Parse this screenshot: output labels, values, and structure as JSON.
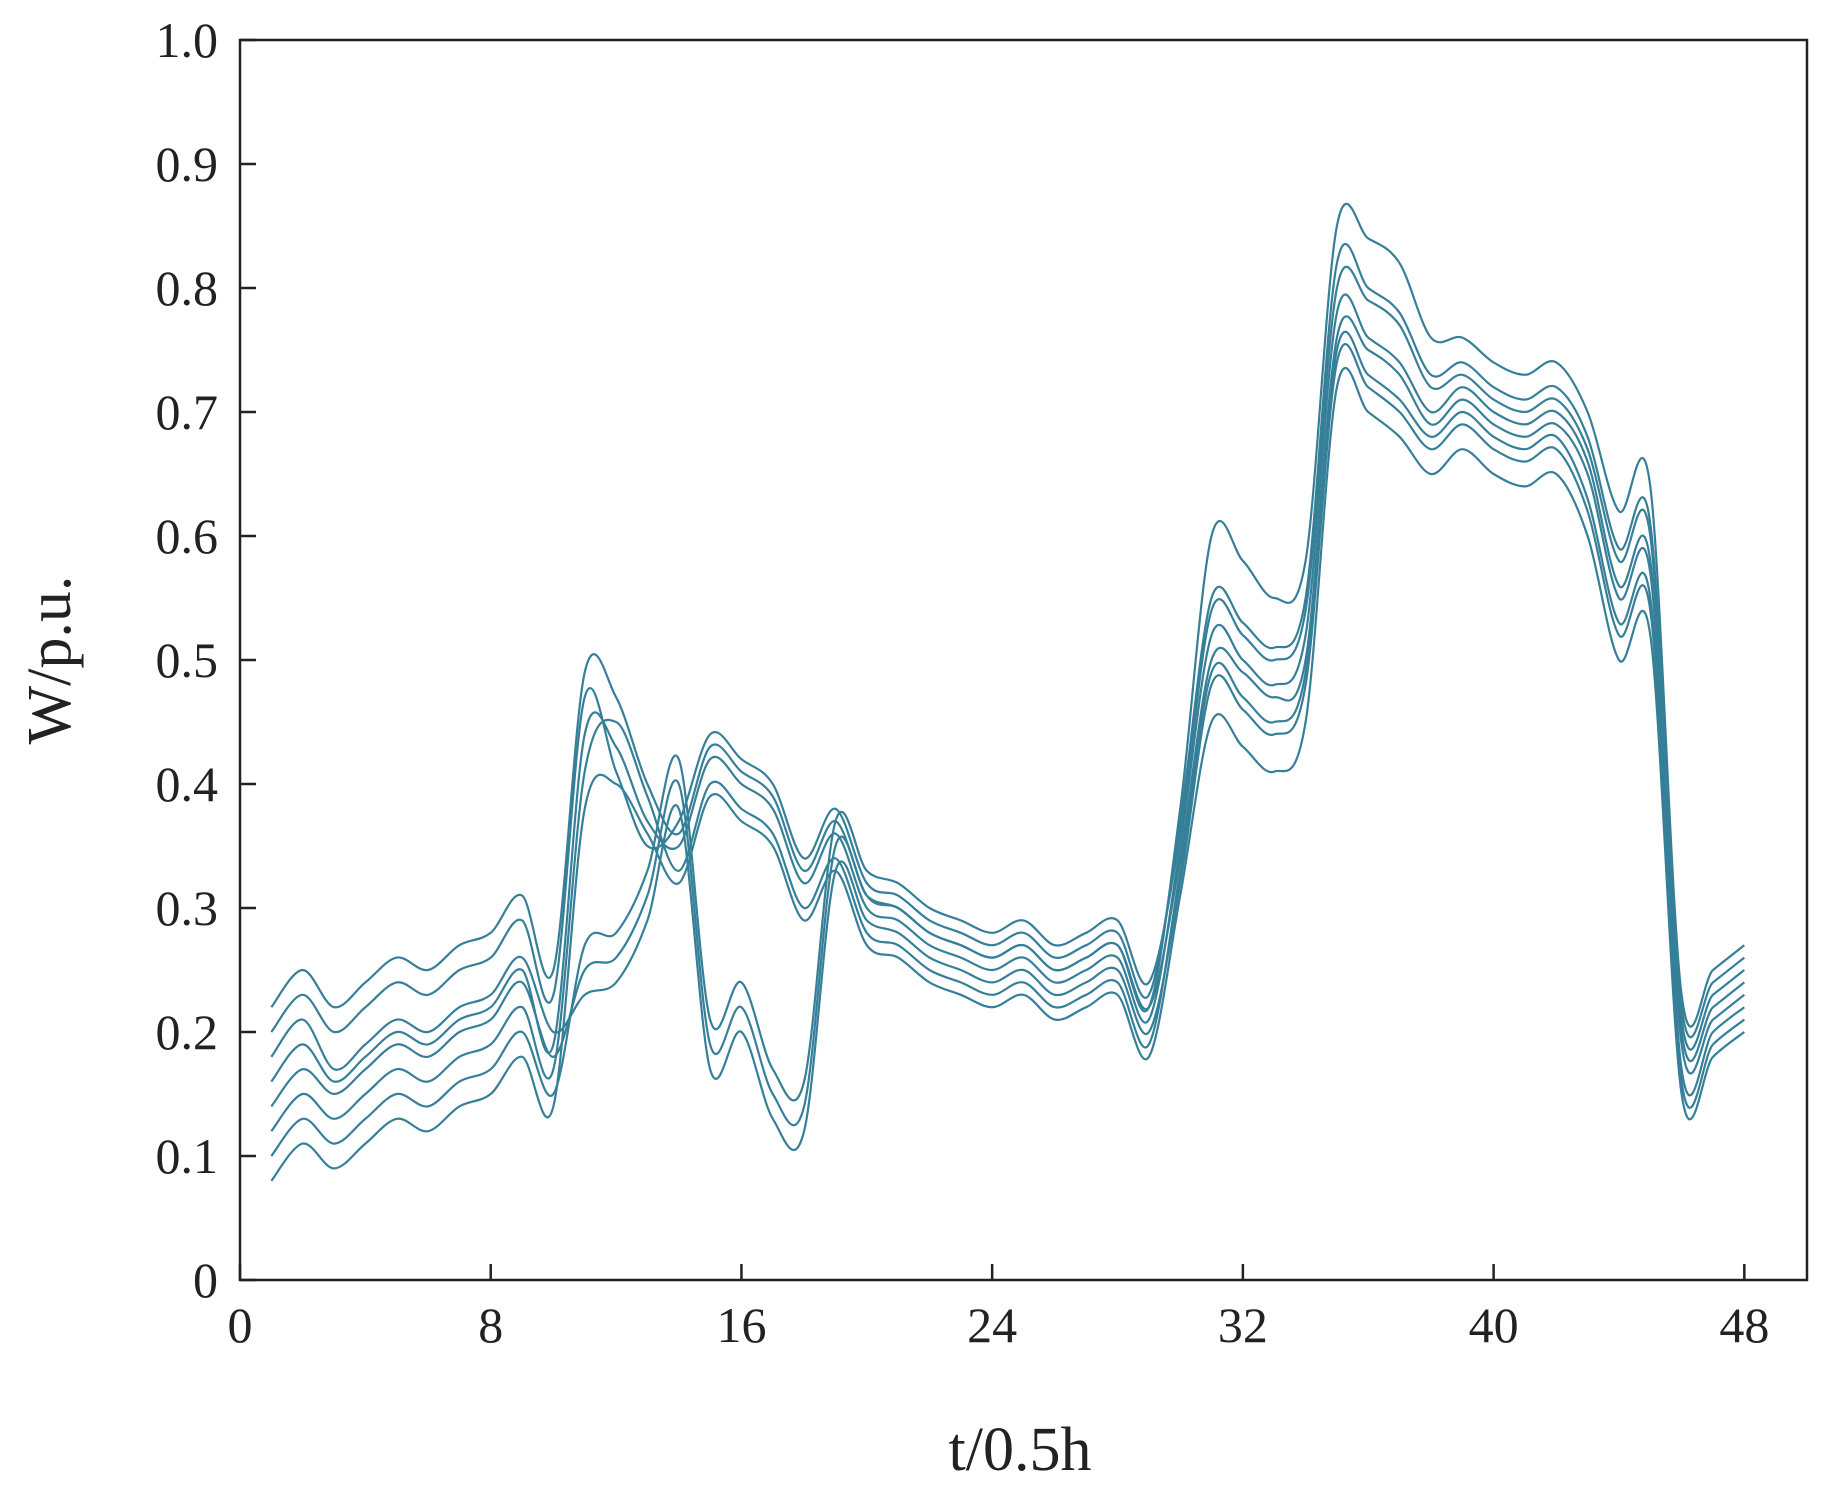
{
  "chart_data": {
    "type": "line",
    "title": "",
    "xlabel": "t/0.5h",
    "ylabel": "W/p.u.",
    "xlim": [
      0,
      50
    ],
    "ylim": [
      0,
      1.0
    ],
    "xticks": [
      0,
      8,
      16,
      24,
      32,
      40,
      48
    ],
    "xtick_labels": [
      "0",
      "8",
      "16",
      "24",
      "32",
      "40",
      "48"
    ],
    "yticks": [
      0,
      0.1,
      0.2,
      0.3,
      0.4,
      0.5,
      0.6,
      0.7,
      0.8,
      0.9,
      1.0
    ],
    "ytick_labels": [
      "0",
      "0.1",
      "0.2",
      "0.3",
      "0.4",
      "0.5",
      "0.6",
      "0.7",
      "0.8",
      "0.9",
      "1.0"
    ],
    "grid": false,
    "legend": "none",
    "line_color": "#367f98",
    "x": [
      1,
      2,
      3,
      4,
      5,
      6,
      7,
      8,
      9,
      10,
      11,
      12,
      13,
      14,
      15,
      16,
      17,
      18,
      19,
      20,
      21,
      22,
      23,
      24,
      25,
      26,
      27,
      28,
      29,
      30,
      31,
      32,
      33,
      34,
      35,
      36,
      37,
      38,
      39,
      40,
      41,
      42,
      43,
      44,
      45,
      46,
      47,
      48
    ],
    "series": [
      {
        "values": [
          0.16,
          0.19,
          0.16,
          0.18,
          0.2,
          0.19,
          0.21,
          0.22,
          0.25,
          0.19,
          0.44,
          0.43,
          0.37,
          0.35,
          0.42,
          0.4,
          0.38,
          0.32,
          0.36,
          0.3,
          0.29,
          0.27,
          0.26,
          0.25,
          0.26,
          0.24,
          0.25,
          0.26,
          0.21,
          0.35,
          0.52,
          0.5,
          0.48,
          0.52,
          0.78,
          0.76,
          0.74,
          0.7,
          0.72,
          0.7,
          0.69,
          0.7,
          0.66,
          0.56,
          0.58,
          0.2,
          0.22,
          0.24
        ]
      },
      {
        "values": [
          0.12,
          0.15,
          0.13,
          0.15,
          0.17,
          0.16,
          0.18,
          0.19,
          0.22,
          0.17,
          0.41,
          0.45,
          0.39,
          0.33,
          0.4,
          0.38,
          0.36,
          0.3,
          0.34,
          0.28,
          0.27,
          0.25,
          0.24,
          0.23,
          0.24,
          0.22,
          0.23,
          0.24,
          0.19,
          0.33,
          0.49,
          0.47,
          0.45,
          0.49,
          0.75,
          0.73,
          0.71,
          0.68,
          0.7,
          0.68,
          0.67,
          0.68,
          0.63,
          0.53,
          0.55,
          0.17,
          0.2,
          0.22
        ]
      },
      {
        "values": [
          0.2,
          0.23,
          0.2,
          0.22,
          0.24,
          0.23,
          0.25,
          0.26,
          0.29,
          0.23,
          0.47,
          0.41,
          0.35,
          0.37,
          0.44,
          0.42,
          0.4,
          0.34,
          0.38,
          0.32,
          0.31,
          0.29,
          0.28,
          0.27,
          0.28,
          0.26,
          0.27,
          0.28,
          0.23,
          0.37,
          0.55,
          0.53,
          0.51,
          0.55,
          0.82,
          0.8,
          0.78,
          0.73,
          0.74,
          0.72,
          0.71,
          0.72,
          0.68,
          0.59,
          0.61,
          0.22,
          0.24,
          0.26
        ]
      },
      {
        "values": [
          0.14,
          0.17,
          0.15,
          0.17,
          0.19,
          0.18,
          0.2,
          0.21,
          0.24,
          0.18,
          0.25,
          0.26,
          0.31,
          0.4,
          0.19,
          0.22,
          0.15,
          0.14,
          0.35,
          0.31,
          0.3,
          0.28,
          0.27,
          0.26,
          0.27,
          0.25,
          0.26,
          0.27,
          0.22,
          0.34,
          0.5,
          0.49,
          0.47,
          0.5,
          0.76,
          0.75,
          0.73,
          0.69,
          0.71,
          0.69,
          0.68,
          0.69,
          0.65,
          0.55,
          0.57,
          0.19,
          0.21,
          0.23
        ]
      },
      {
        "values": [
          0.18,
          0.21,
          0.17,
          0.19,
          0.21,
          0.2,
          0.22,
          0.23,
          0.26,
          0.2,
          0.23,
          0.24,
          0.29,
          0.38,
          0.17,
          0.2,
          0.13,
          0.12,
          0.33,
          0.29,
          0.28,
          0.26,
          0.25,
          0.24,
          0.25,
          0.23,
          0.24,
          0.25,
          0.2,
          0.32,
          0.48,
          0.46,
          0.44,
          0.48,
          0.74,
          0.72,
          0.7,
          0.67,
          0.69,
          0.67,
          0.66,
          0.67,
          0.62,
          0.52,
          0.54,
          0.16,
          0.19,
          0.21
        ]
      },
      {
        "values": [
          0.1,
          0.13,
          0.11,
          0.13,
          0.15,
          0.14,
          0.16,
          0.17,
          0.2,
          0.15,
          0.27,
          0.28,
          0.33,
          0.42,
          0.21,
          0.24,
          0.17,
          0.16,
          0.37,
          0.33,
          0.32,
          0.3,
          0.29,
          0.28,
          0.29,
          0.27,
          0.28,
          0.29,
          0.24,
          0.36,
          0.54,
          0.52,
          0.5,
          0.54,
          0.8,
          0.79,
          0.77,
          0.72,
          0.73,
          0.71,
          0.7,
          0.71,
          0.67,
          0.58,
          0.6,
          0.21,
          0.23,
          0.25
        ]
      },
      {
        "values": [
          0.22,
          0.25,
          0.22,
          0.24,
          0.26,
          0.25,
          0.27,
          0.28,
          0.31,
          0.25,
          0.49,
          0.47,
          0.4,
          0.36,
          0.43,
          0.41,
          0.39,
          0.33,
          0.37,
          0.31,
          0.3,
          0.28,
          0.27,
          0.26,
          0.27,
          0.25,
          0.26,
          0.27,
          0.22,
          0.38,
          0.6,
          0.58,
          0.55,
          0.58,
          0.85,
          0.84,
          0.82,
          0.76,
          0.76,
          0.74,
          0.73,
          0.74,
          0.7,
          0.62,
          0.64,
          0.23,
          0.25,
          0.27
        ]
      },
      {
        "values": [
          0.08,
          0.11,
          0.09,
          0.11,
          0.13,
          0.12,
          0.14,
          0.15,
          0.18,
          0.14,
          0.38,
          0.4,
          0.36,
          0.32,
          0.39,
          0.37,
          0.35,
          0.29,
          0.33,
          0.27,
          0.26,
          0.24,
          0.23,
          0.22,
          0.23,
          0.21,
          0.22,
          0.23,
          0.18,
          0.31,
          0.45,
          0.43,
          0.41,
          0.45,
          0.72,
          0.7,
          0.68,
          0.65,
          0.67,
          0.65,
          0.64,
          0.65,
          0.6,
          0.5,
          0.52,
          0.15,
          0.18,
          0.2
        ]
      }
    ]
  }
}
